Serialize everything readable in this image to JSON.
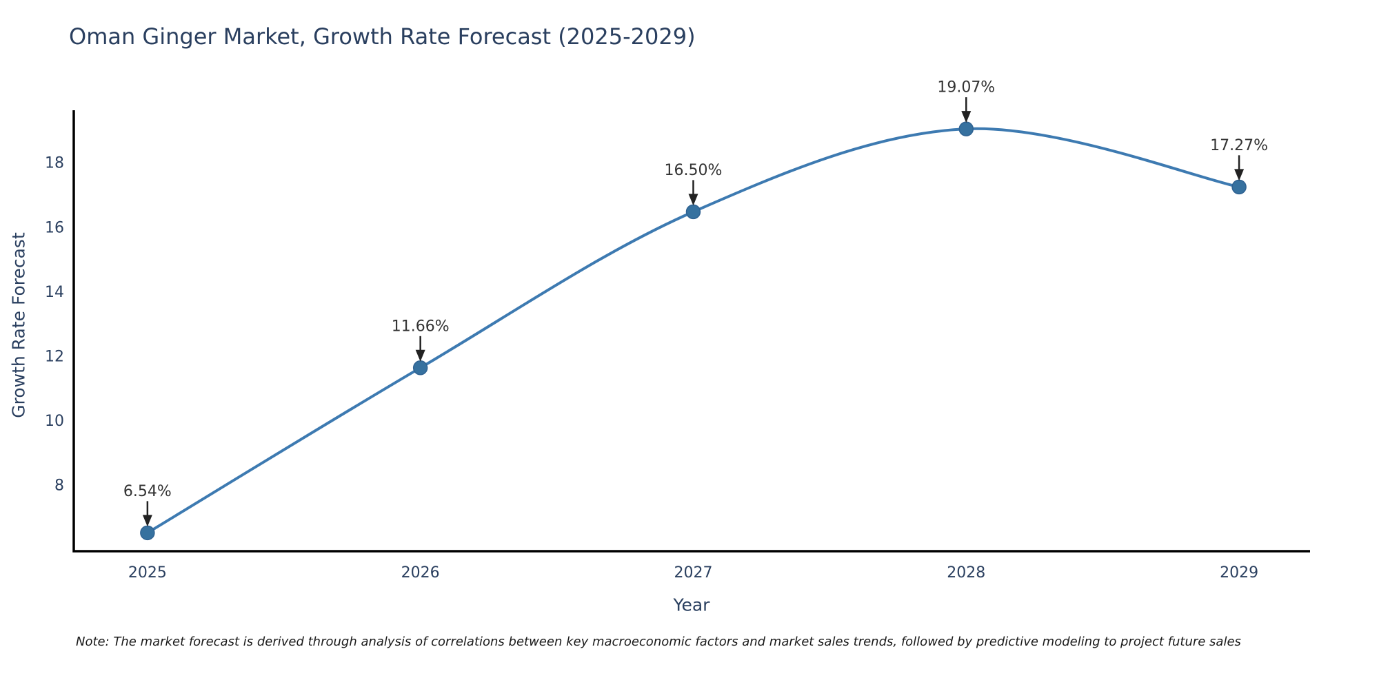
{
  "note": "Note: The market forecast is derived through analysis of correlations between key macroeconomic factors and market sales trends, followed by predictive modeling to project future sales",
  "chart_data": {
    "type": "line",
    "title": "Oman Ginger Market, Growth Rate Forecast (2025-2029)",
    "xlabel": "Year",
    "ylabel": "Growth Rate Forecast",
    "x": [
      2025,
      2026,
      2027,
      2028,
      2029
    ],
    "y": [
      6.54,
      11.66,
      16.5,
      19.07,
      17.27
    ],
    "point_labels": [
      "6.54%",
      "11.66%",
      "16.50%",
      "19.07%",
      "17.27%"
    ],
    "x_ticks": [
      "2025",
      "2026",
      "2027",
      "2028",
      "2029"
    ],
    "y_ticks": [
      8,
      10,
      12,
      14,
      16,
      18
    ],
    "x_range": [
      2024.73,
      2029.26
    ],
    "y_range": [
      5.97,
      19.65
    ],
    "line_shape": "spline",
    "grid": false,
    "legend": "none",
    "colors": {
      "line": "#3d7ab1",
      "marker": "#36719f",
      "marker_edge": "#2f6292",
      "axis": "#000000",
      "title_text": "#2a3f5f",
      "tick_text": "#2a3f5f",
      "annotation_text": "#333333",
      "arrow": "#222222",
      "background": "#ffffff"
    }
  }
}
